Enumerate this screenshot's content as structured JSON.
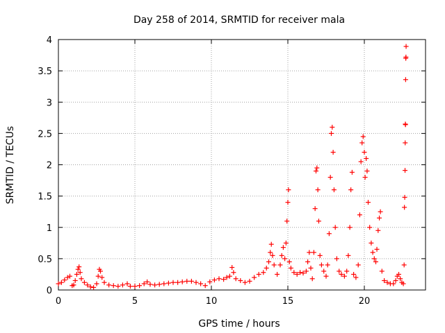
{
  "chart_data": {
    "type": "scatter",
    "title": "Day 258 of 2014, SRMTID for receiver mala",
    "xlabel": "GPS time / hours",
    "ylabel": "SRMTID / TECUs",
    "xlim": [
      0,
      24
    ],
    "ylim": [
      0,
      4
    ],
    "xticks": [
      0,
      5,
      10,
      15,
      20
    ],
    "yticks": [
      0,
      0.5,
      1,
      1.5,
      2,
      2.5,
      3,
      3.5,
      4
    ],
    "xtick_labels": [
      "0",
      "5",
      "10",
      "15",
      "20"
    ],
    "ytick_labels": [
      "0",
      "0.5",
      "1",
      "1.5",
      "2",
      "2.5",
      "3",
      "3.5",
      "4"
    ],
    "grid": true,
    "marker": "+",
    "color": "#ff0000",
    "series": [
      {
        "name": "mala",
        "points": [
          [
            0.0,
            0.1
          ],
          [
            0.2,
            0.12
          ],
          [
            0.4,
            0.16
          ],
          [
            0.6,
            0.2
          ],
          [
            0.75,
            0.22
          ],
          [
            0.9,
            0.07
          ],
          [
            1.0,
            0.08
          ],
          [
            1.1,
            0.15
          ],
          [
            1.2,
            0.25
          ],
          [
            1.28,
            0.33
          ],
          [
            1.35,
            0.37
          ],
          [
            1.42,
            0.28
          ],
          [
            1.5,
            0.18
          ],
          [
            1.7,
            0.12
          ],
          [
            1.9,
            0.08
          ],
          [
            2.1,
            0.05
          ],
          [
            2.3,
            0.04
          ],
          [
            2.5,
            0.1
          ],
          [
            2.6,
            0.22
          ],
          [
            2.68,
            0.33
          ],
          [
            2.75,
            0.3
          ],
          [
            2.85,
            0.2
          ],
          [
            3.0,
            0.12
          ],
          [
            3.3,
            0.08
          ],
          [
            3.6,
            0.07
          ],
          [
            3.9,
            0.06
          ],
          [
            4.2,
            0.08
          ],
          [
            4.5,
            0.1
          ],
          [
            4.7,
            0.06
          ],
          [
            5.0,
            0.06
          ],
          [
            5.3,
            0.07
          ],
          [
            5.6,
            0.1
          ],
          [
            5.8,
            0.13
          ],
          [
            6.0,
            0.09
          ],
          [
            6.3,
            0.08
          ],
          [
            6.6,
            0.09
          ],
          [
            6.9,
            0.1
          ],
          [
            7.2,
            0.11
          ],
          [
            7.5,
            0.12
          ],
          [
            7.8,
            0.12
          ],
          [
            8.1,
            0.13
          ],
          [
            8.4,
            0.14
          ],
          [
            8.7,
            0.14
          ],
          [
            9.0,
            0.12
          ],
          [
            9.3,
            0.1
          ],
          [
            9.6,
            0.07
          ],
          [
            9.9,
            0.13
          ],
          [
            10.2,
            0.16
          ],
          [
            10.5,
            0.18
          ],
          [
            10.8,
            0.17
          ],
          [
            11.0,
            0.2
          ],
          [
            11.2,
            0.22
          ],
          [
            11.35,
            0.36
          ],
          [
            11.45,
            0.28
          ],
          [
            11.6,
            0.18
          ],
          [
            11.9,
            0.15
          ],
          [
            12.2,
            0.12
          ],
          [
            12.5,
            0.14
          ],
          [
            12.8,
            0.2
          ],
          [
            13.1,
            0.25
          ],
          [
            13.4,
            0.28
          ],
          [
            13.6,
            0.35
          ],
          [
            13.75,
            0.45
          ],
          [
            13.85,
            0.6
          ],
          [
            13.92,
            0.73
          ],
          [
            14.0,
            0.55
          ],
          [
            14.1,
            0.4
          ],
          [
            14.3,
            0.25
          ],
          [
            14.5,
            0.4
          ],
          [
            14.6,
            0.55
          ],
          [
            14.7,
            0.68
          ],
          [
            14.8,
            0.5
          ],
          [
            14.88,
            0.75
          ],
          [
            14.94,
            1.1
          ],
          [
            15.0,
            1.4
          ],
          [
            15.04,
            1.6
          ],
          [
            15.1,
            0.45
          ],
          [
            15.2,
            0.35
          ],
          [
            15.4,
            0.28
          ],
          [
            15.6,
            0.25
          ],
          [
            15.8,
            0.28
          ],
          [
            16.0,
            0.27
          ],
          [
            16.2,
            0.3
          ],
          [
            16.3,
            0.45
          ],
          [
            16.4,
            0.6
          ],
          [
            16.5,
            0.35
          ],
          [
            16.6,
            0.18
          ],
          [
            16.7,
            0.6
          ],
          [
            16.78,
            1.3
          ],
          [
            16.84,
            1.9
          ],
          [
            16.9,
            1.95
          ],
          [
            16.96,
            1.6
          ],
          [
            17.02,
            1.1
          ],
          [
            17.1,
            0.55
          ],
          [
            17.2,
            0.4
          ],
          [
            17.35,
            0.3
          ],
          [
            17.5,
            0.22
          ],
          [
            17.6,
            0.4
          ],
          [
            17.7,
            0.9
          ],
          [
            17.78,
            1.8
          ],
          [
            17.84,
            2.5
          ],
          [
            17.9,
            2.6
          ],
          [
            17.96,
            2.2
          ],
          [
            18.02,
            1.6
          ],
          [
            18.1,
            1.0
          ],
          [
            18.2,
            0.5
          ],
          [
            18.35,
            0.3
          ],
          [
            18.5,
            0.25
          ],
          [
            18.7,
            0.22
          ],
          [
            18.85,
            0.3
          ],
          [
            18.95,
            0.55
          ],
          [
            19.05,
            1.0
          ],
          [
            19.12,
            1.6
          ],
          [
            19.2,
            1.88
          ],
          [
            19.3,
            0.25
          ],
          [
            19.45,
            0.2
          ],
          [
            19.6,
            0.4
          ],
          [
            19.7,
            1.2
          ],
          [
            19.78,
            2.05
          ],
          [
            19.85,
            2.35
          ],
          [
            19.92,
            2.45
          ],
          [
            20.0,
            2.2
          ],
          [
            20.05,
            1.8
          ],
          [
            20.12,
            2.1
          ],
          [
            20.18,
            1.9
          ],
          [
            20.25,
            1.4
          ],
          [
            20.35,
            1.0
          ],
          [
            20.45,
            0.75
          ],
          [
            20.55,
            0.6
          ],
          [
            20.65,
            0.5
          ],
          [
            20.75,
            0.45
          ],
          [
            20.82,
            0.65
          ],
          [
            20.9,
            0.95
          ],
          [
            20.98,
            1.15
          ],
          [
            21.05,
            1.25
          ],
          [
            21.15,
            0.3
          ],
          [
            21.3,
            0.15
          ],
          [
            21.5,
            0.12
          ],
          [
            21.7,
            0.1
          ],
          [
            21.9,
            0.1
          ],
          [
            22.05,
            0.15
          ],
          [
            22.15,
            0.22
          ],
          [
            22.25,
            0.25
          ],
          [
            22.35,
            0.18
          ],
          [
            22.45,
            0.12
          ],
          [
            22.55,
            0.1
          ],
          [
            22.6,
            0.4
          ],
          [
            22.62,
            1.32
          ],
          [
            22.64,
            1.48
          ],
          [
            22.66,
            1.91
          ],
          [
            22.67,
            2.35
          ],
          [
            22.68,
            2.65
          ],
          [
            22.69,
            2.64
          ],
          [
            22.7,
            3.36
          ],
          [
            22.71,
            3.7
          ],
          [
            22.72,
            3.72
          ],
          [
            22.73,
            3.89
          ]
        ]
      }
    ]
  }
}
